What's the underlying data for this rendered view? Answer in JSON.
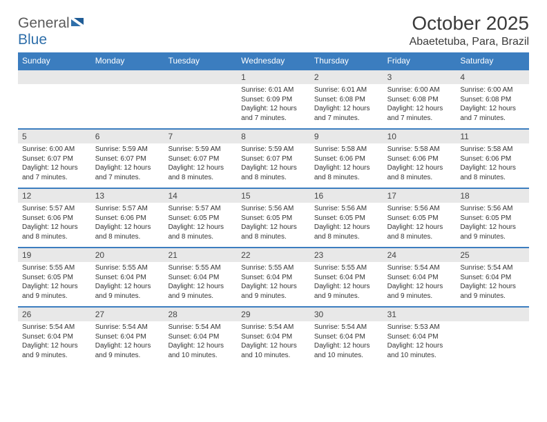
{
  "brand": {
    "word1": "General",
    "word2": "Blue",
    "accent_color": "#2f6faa",
    "text_color": "#5a5a5a"
  },
  "title": "October 2025",
  "location": "Abaetetuba, Para, Brazil",
  "colors": {
    "header_bg": "#3b7dbf",
    "daynum_bg": "#e8e8e8",
    "rule": "#3b7dbf",
    "text": "#3a3a3a"
  },
  "weekdays": [
    "Sunday",
    "Monday",
    "Tuesday",
    "Wednesday",
    "Thursday",
    "Friday",
    "Saturday"
  ],
  "weeks": [
    [
      null,
      null,
      null,
      {
        "n": "1",
        "sunrise": "6:01 AM",
        "sunset": "6:09 PM",
        "daylight": "12 hours and 7 minutes."
      },
      {
        "n": "2",
        "sunrise": "6:01 AM",
        "sunset": "6:08 PM",
        "daylight": "12 hours and 7 minutes."
      },
      {
        "n": "3",
        "sunrise": "6:00 AM",
        "sunset": "6:08 PM",
        "daylight": "12 hours and 7 minutes."
      },
      {
        "n": "4",
        "sunrise": "6:00 AM",
        "sunset": "6:08 PM",
        "daylight": "12 hours and 7 minutes."
      }
    ],
    [
      {
        "n": "5",
        "sunrise": "6:00 AM",
        "sunset": "6:07 PM",
        "daylight": "12 hours and 7 minutes."
      },
      {
        "n": "6",
        "sunrise": "5:59 AM",
        "sunset": "6:07 PM",
        "daylight": "12 hours and 7 minutes."
      },
      {
        "n": "7",
        "sunrise": "5:59 AM",
        "sunset": "6:07 PM",
        "daylight": "12 hours and 8 minutes."
      },
      {
        "n": "8",
        "sunrise": "5:59 AM",
        "sunset": "6:07 PM",
        "daylight": "12 hours and 8 minutes."
      },
      {
        "n": "9",
        "sunrise": "5:58 AM",
        "sunset": "6:06 PM",
        "daylight": "12 hours and 8 minutes."
      },
      {
        "n": "10",
        "sunrise": "5:58 AM",
        "sunset": "6:06 PM",
        "daylight": "12 hours and 8 minutes."
      },
      {
        "n": "11",
        "sunrise": "5:58 AM",
        "sunset": "6:06 PM",
        "daylight": "12 hours and 8 minutes."
      }
    ],
    [
      {
        "n": "12",
        "sunrise": "5:57 AM",
        "sunset": "6:06 PM",
        "daylight": "12 hours and 8 minutes."
      },
      {
        "n": "13",
        "sunrise": "5:57 AM",
        "sunset": "6:06 PM",
        "daylight": "12 hours and 8 minutes."
      },
      {
        "n": "14",
        "sunrise": "5:57 AM",
        "sunset": "6:05 PM",
        "daylight": "12 hours and 8 minutes."
      },
      {
        "n": "15",
        "sunrise": "5:56 AM",
        "sunset": "6:05 PM",
        "daylight": "12 hours and 8 minutes."
      },
      {
        "n": "16",
        "sunrise": "5:56 AM",
        "sunset": "6:05 PM",
        "daylight": "12 hours and 8 minutes."
      },
      {
        "n": "17",
        "sunrise": "5:56 AM",
        "sunset": "6:05 PM",
        "daylight": "12 hours and 8 minutes."
      },
      {
        "n": "18",
        "sunrise": "5:56 AM",
        "sunset": "6:05 PM",
        "daylight": "12 hours and 9 minutes."
      }
    ],
    [
      {
        "n": "19",
        "sunrise": "5:55 AM",
        "sunset": "6:05 PM",
        "daylight": "12 hours and 9 minutes."
      },
      {
        "n": "20",
        "sunrise": "5:55 AM",
        "sunset": "6:04 PM",
        "daylight": "12 hours and 9 minutes."
      },
      {
        "n": "21",
        "sunrise": "5:55 AM",
        "sunset": "6:04 PM",
        "daylight": "12 hours and 9 minutes."
      },
      {
        "n": "22",
        "sunrise": "5:55 AM",
        "sunset": "6:04 PM",
        "daylight": "12 hours and 9 minutes."
      },
      {
        "n": "23",
        "sunrise": "5:55 AM",
        "sunset": "6:04 PM",
        "daylight": "12 hours and 9 minutes."
      },
      {
        "n": "24",
        "sunrise": "5:54 AM",
        "sunset": "6:04 PM",
        "daylight": "12 hours and 9 minutes."
      },
      {
        "n": "25",
        "sunrise": "5:54 AM",
        "sunset": "6:04 PM",
        "daylight": "12 hours and 9 minutes."
      }
    ],
    [
      {
        "n": "26",
        "sunrise": "5:54 AM",
        "sunset": "6:04 PM",
        "daylight": "12 hours and 9 minutes."
      },
      {
        "n": "27",
        "sunrise": "5:54 AM",
        "sunset": "6:04 PM",
        "daylight": "12 hours and 9 minutes."
      },
      {
        "n": "28",
        "sunrise": "5:54 AM",
        "sunset": "6:04 PM",
        "daylight": "12 hours and 10 minutes."
      },
      {
        "n": "29",
        "sunrise": "5:54 AM",
        "sunset": "6:04 PM",
        "daylight": "12 hours and 10 minutes."
      },
      {
        "n": "30",
        "sunrise": "5:54 AM",
        "sunset": "6:04 PM",
        "daylight": "12 hours and 10 minutes."
      },
      {
        "n": "31",
        "sunrise": "5:53 AM",
        "sunset": "6:04 PM",
        "daylight": "12 hours and 10 minutes."
      },
      null
    ]
  ]
}
